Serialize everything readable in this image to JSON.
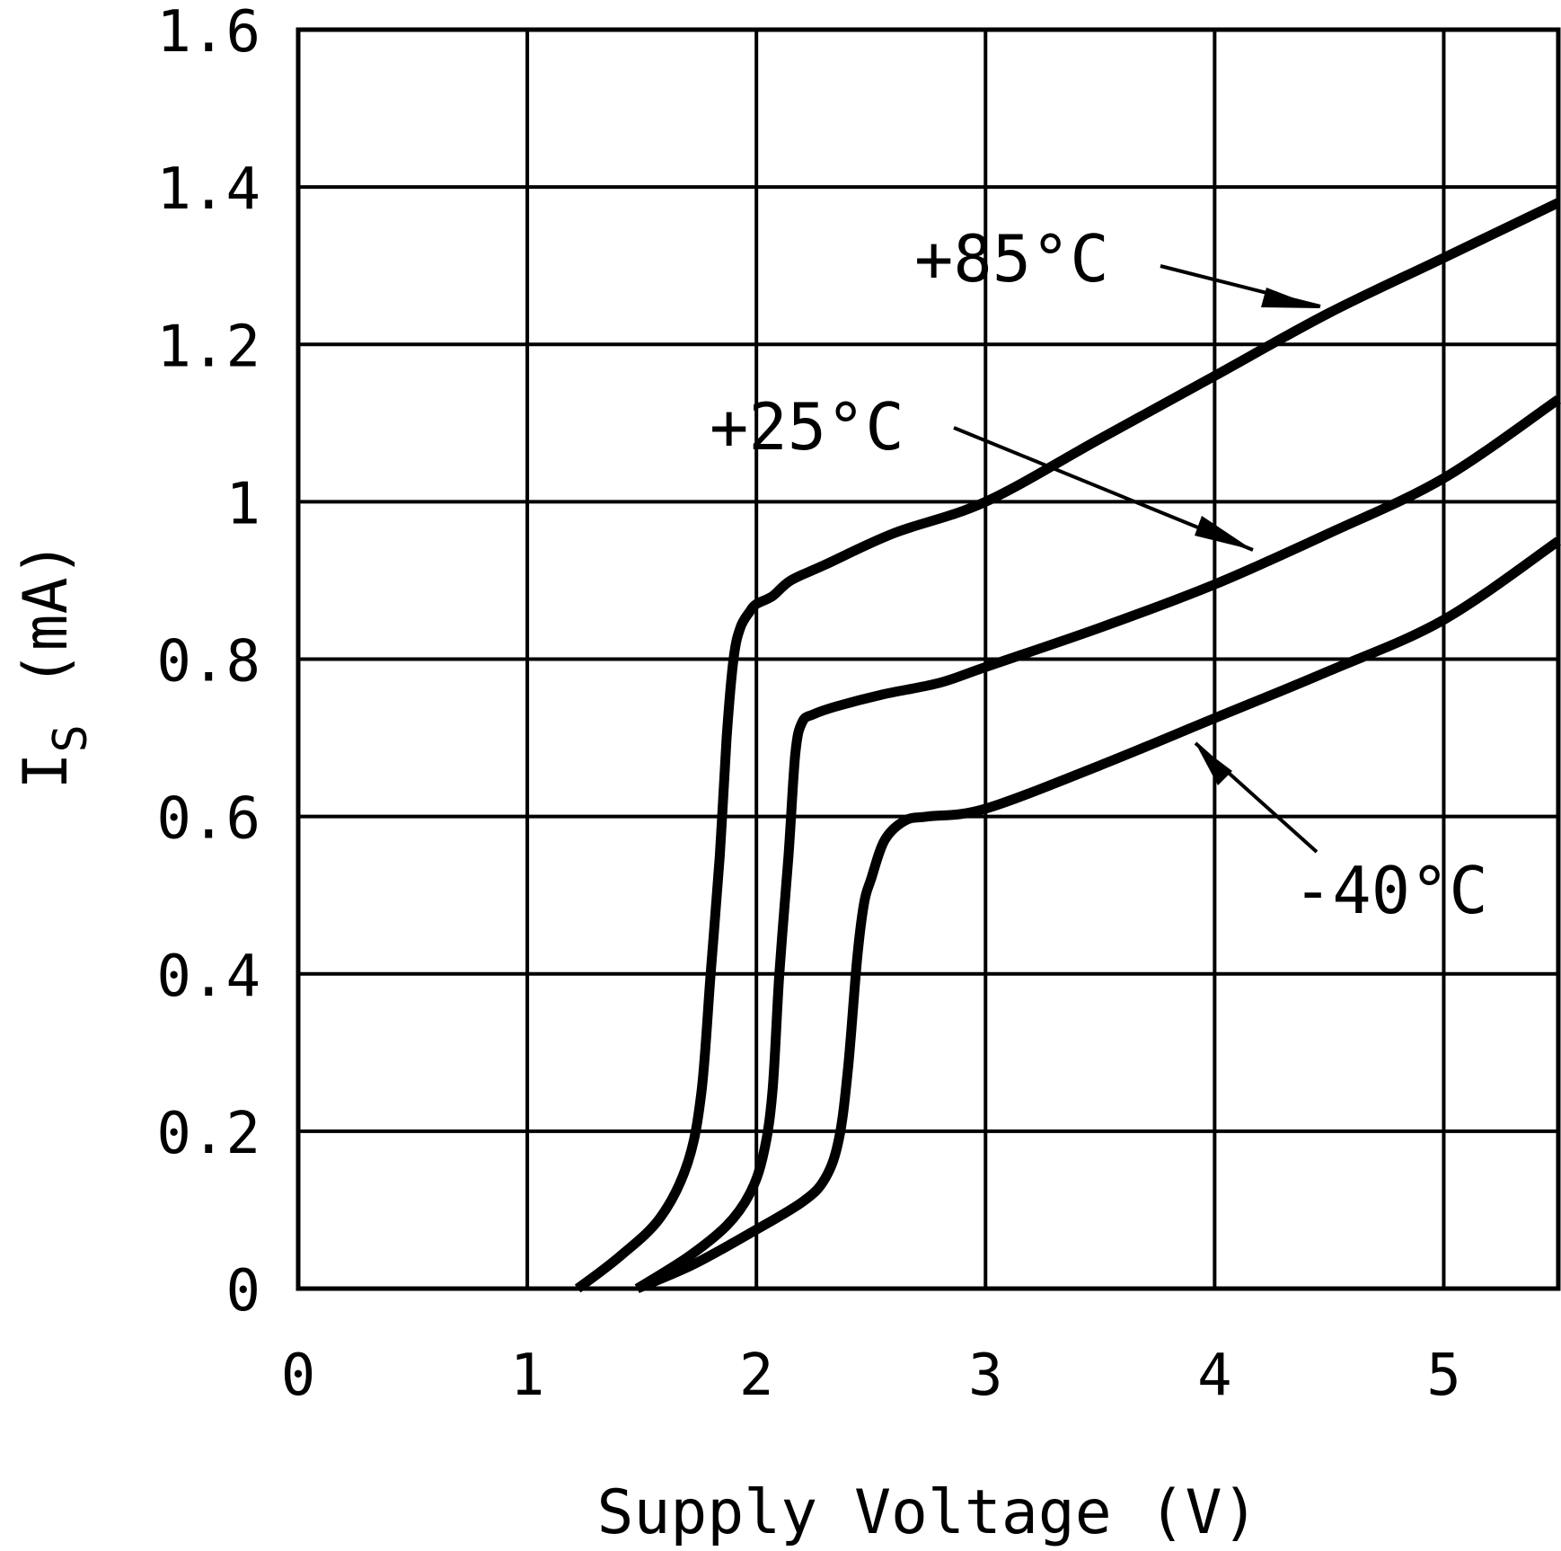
{
  "chart_data": {
    "type": "line",
    "xlabel": "Supply Voltage (V)",
    "ylabel": "I",
    "ylabel_sub": "S",
    "ylabel_unit": "(mA)",
    "xlim": [
      0,
      5.5
    ],
    "ylim": [
      0,
      1.6
    ],
    "x_ticks": [
      0,
      1,
      2,
      3,
      4,
      5
    ],
    "x_tick_labels": [
      "0",
      "1",
      "2",
      "3",
      "4",
      "5"
    ],
    "y_ticks": [
      0,
      0.2,
      0.4,
      0.6,
      0.8,
      1.0,
      1.2,
      1.4,
      1.6
    ],
    "y_tick_labels": [
      "0",
      "0.2",
      "0.4",
      "0.6",
      "0.8",
      "1",
      "1.2",
      "1.4",
      "1.6"
    ],
    "grid": true,
    "series": [
      {
        "name": "+85°C",
        "x": [
          1.22,
          1.4,
          1.58,
          1.7,
          1.76,
          1.8,
          1.84,
          1.87,
          1.9,
          1.93,
          1.97,
          2.0,
          2.07,
          2.15,
          2.3,
          2.6,
          3.0,
          3.5,
          4.0,
          4.5,
          5.0,
          5.5
        ],
        "y": [
          0.0,
          0.04,
          0.09,
          0.16,
          0.25,
          0.4,
          0.55,
          0.7,
          0.8,
          0.84,
          0.86,
          0.87,
          0.88,
          0.9,
          0.92,
          0.96,
          1.0,
          1.08,
          1.16,
          1.24,
          1.31,
          1.38
        ]
      },
      {
        "name": "+25°C",
        "x": [
          1.48,
          1.7,
          1.87,
          1.97,
          2.03,
          2.07,
          2.1,
          2.14,
          2.17,
          2.2,
          2.25,
          2.35,
          2.55,
          2.8,
          3.0,
          3.5,
          4.0,
          4.5,
          5.0,
          5.5
        ],
        "y": [
          0.0,
          0.04,
          0.08,
          0.12,
          0.17,
          0.25,
          0.4,
          0.55,
          0.68,
          0.72,
          0.73,
          0.74,
          0.755,
          0.77,
          0.79,
          0.84,
          0.895,
          0.96,
          1.03,
          1.13
        ]
      },
      {
        "name": "-40°C",
        "x": [
          1.48,
          1.72,
          1.97,
          2.2,
          2.3,
          2.36,
          2.4,
          2.44,
          2.47,
          2.5,
          2.56,
          2.65,
          2.75,
          3.0,
          3.5,
          4.0,
          4.5,
          5.0,
          5.5
        ],
        "y": [
          0.0,
          0.03,
          0.07,
          0.11,
          0.14,
          0.19,
          0.28,
          0.42,
          0.49,
          0.52,
          0.57,
          0.595,
          0.6,
          0.61,
          0.665,
          0.725,
          0.785,
          0.85,
          0.95
        ]
      }
    ],
    "annotations": [
      "+85°C",
      "+25°C",
      "-40°C"
    ]
  }
}
